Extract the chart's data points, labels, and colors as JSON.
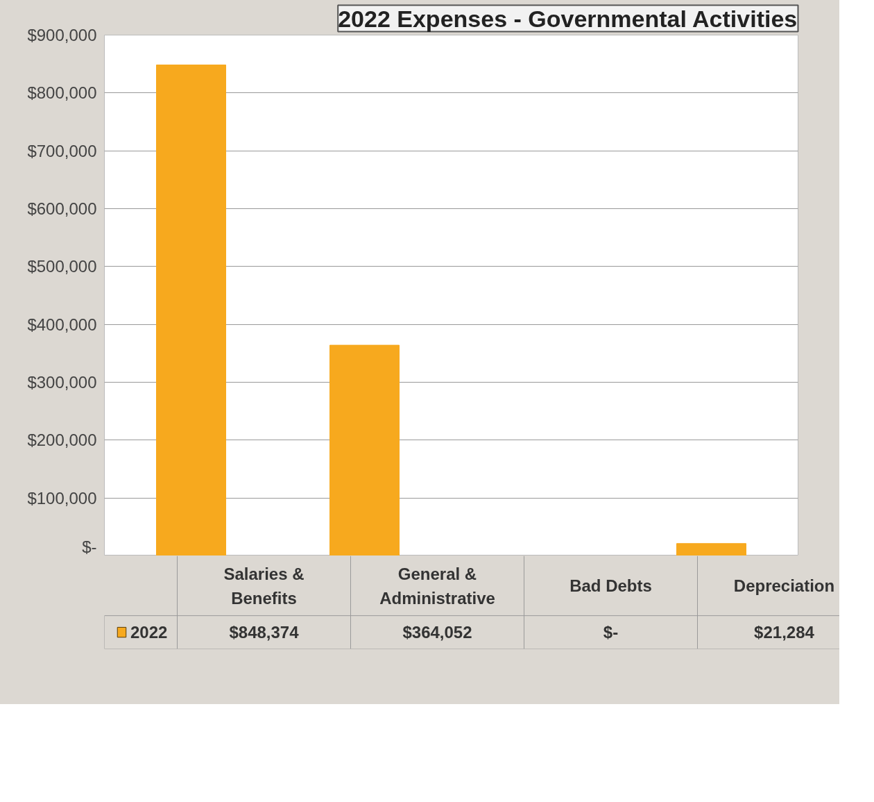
{
  "chart_data": {
    "type": "bar",
    "title": "2022 Expenses - Governmental Activities",
    "categories": [
      "Salaries & Benefits",
      "General & Administrative",
      "Bad Debts",
      "Depreciation"
    ],
    "series": [
      {
        "name": "2022",
        "color": "#f7a91e",
        "values": [
          848374,
          364052,
          0,
          21284
        ],
        "value_labels": [
          "$848,374",
          "$364,052",
          "$-",
          "$21,284"
        ]
      }
    ],
    "ylim": [
      0,
      900000
    ],
    "yticks": [
      {
        "value": 0,
        "label": "$-"
      },
      {
        "value": 100000,
        "label": "$100,000"
      },
      {
        "value": 200000,
        "label": "$200,000"
      },
      {
        "value": 300000,
        "label": "$300,000"
      },
      {
        "value": 400000,
        "label": "$400,000"
      },
      {
        "value": 500000,
        "label": "$500,000"
      },
      {
        "value": 600000,
        "label": "$600,000"
      },
      {
        "value": 700000,
        "label": "$700,000"
      },
      {
        "value": 800000,
        "label": "$800,000"
      },
      {
        "value": 900000,
        "label": "$900,000"
      }
    ],
    "grid": "y"
  }
}
